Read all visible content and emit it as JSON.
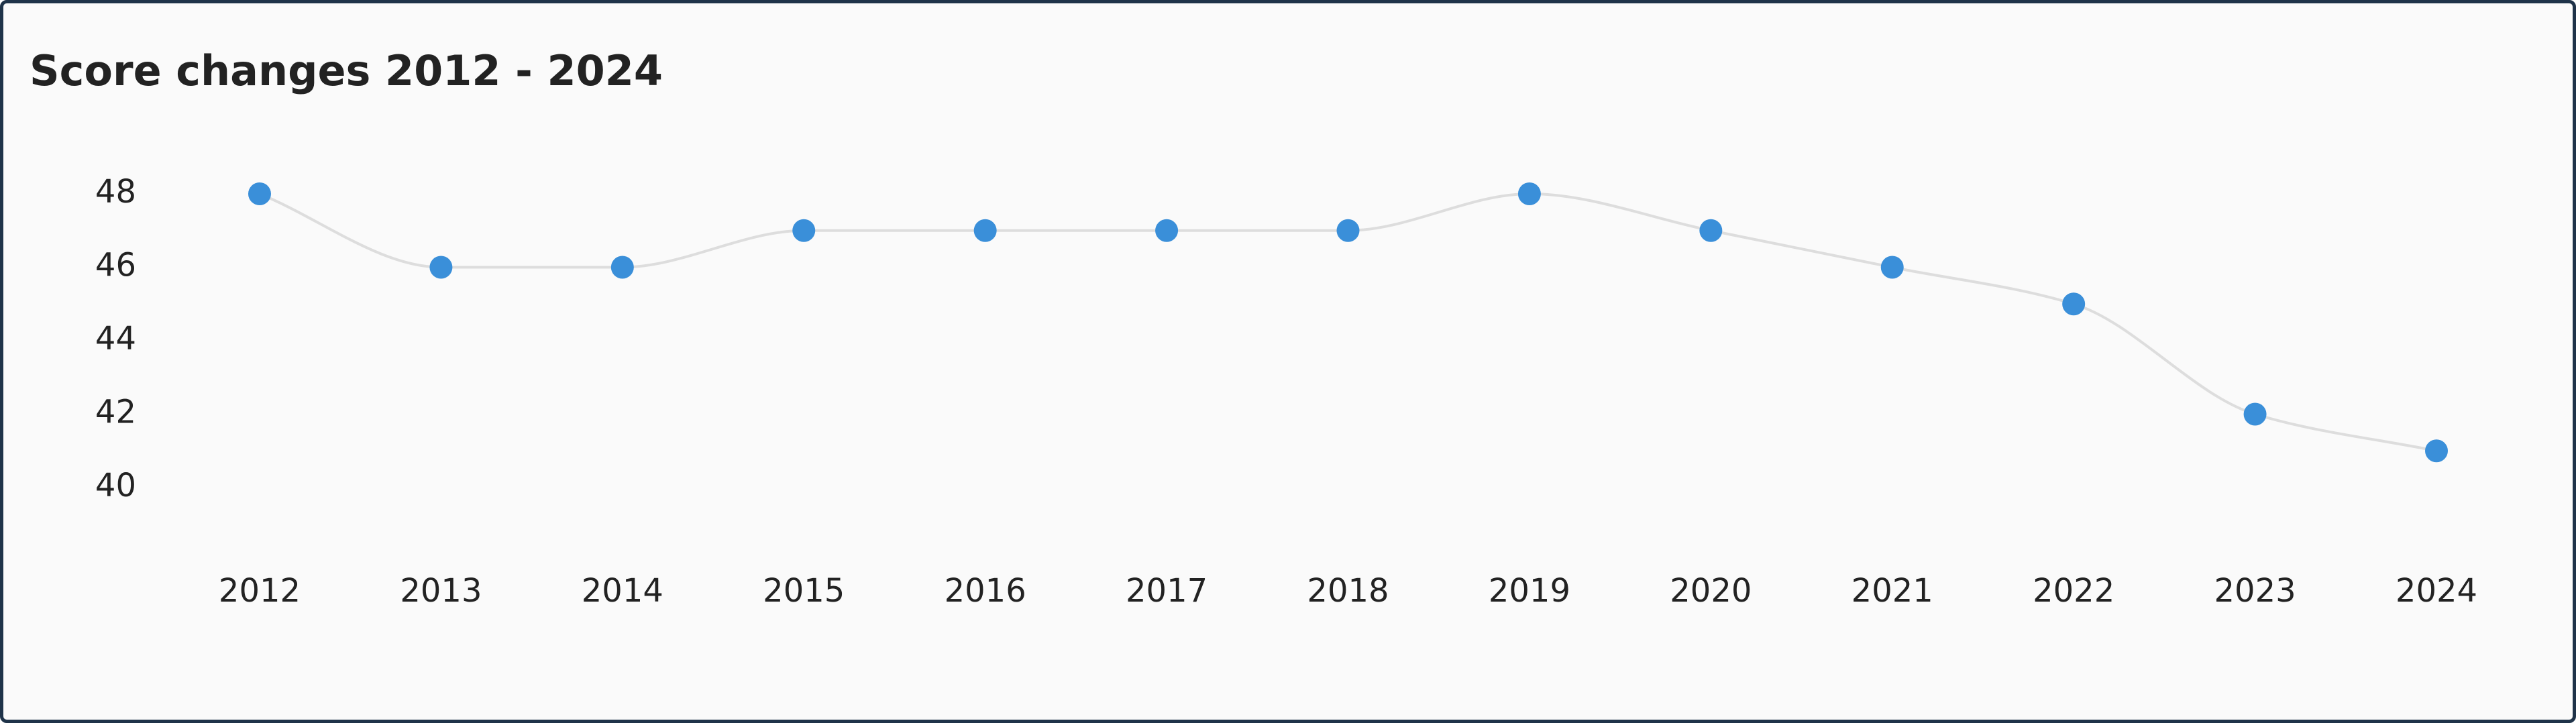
{
  "chart_data": {
    "type": "line",
    "title": "Score changes 2012 - 2024",
    "categories": [
      "2012",
      "2013",
      "2014",
      "2015",
      "2016",
      "2017",
      "2018",
      "2019",
      "2020",
      "2021",
      "2022",
      "2023",
      "2024"
    ],
    "values": [
      48,
      46,
      46,
      47,
      47,
      47,
      47,
      48,
      47,
      46,
      45,
      42,
      41
    ],
    "color": "#3a8fd9",
    "line_color": "#dddddd",
    "ylim": [
      40,
      48
    ],
    "yticks": [
      40,
      42,
      44,
      46,
      48
    ],
    "grid": false
  }
}
